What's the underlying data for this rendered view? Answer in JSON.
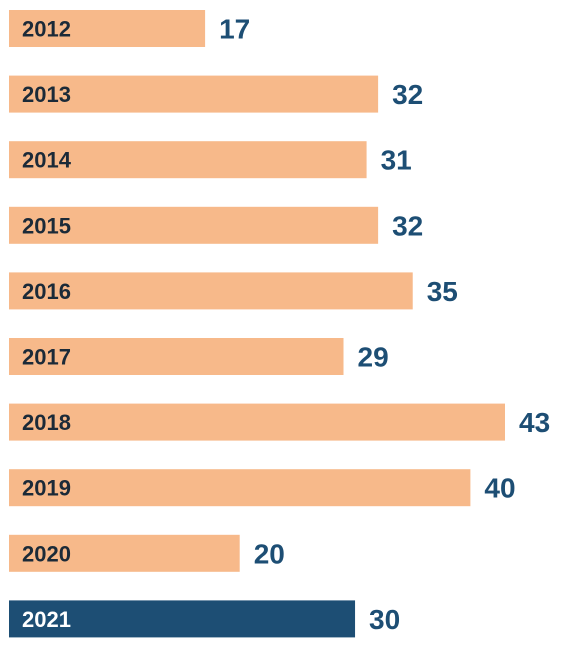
{
  "chart_data": {
    "type": "bar",
    "orientation": "horizontal",
    "categories": [
      "2012",
      "2013",
      "2014",
      "2015",
      "2016",
      "2017",
      "2018",
      "2019",
      "2020",
      "2021"
    ],
    "values": [
      17,
      32,
      31,
      32,
      35,
      29,
      43,
      40,
      20,
      30
    ],
    "highlight_index": 9,
    "xlim": [
      0,
      43
    ],
    "grid": false,
    "legend": "none",
    "colors": {
      "bar": "#F7B98A",
      "highlight_bar": "#1D4E74",
      "category_text": "#1B2A38",
      "highlight_category_text": "#FFFFFF",
      "value_text": "#1D4E74"
    }
  }
}
